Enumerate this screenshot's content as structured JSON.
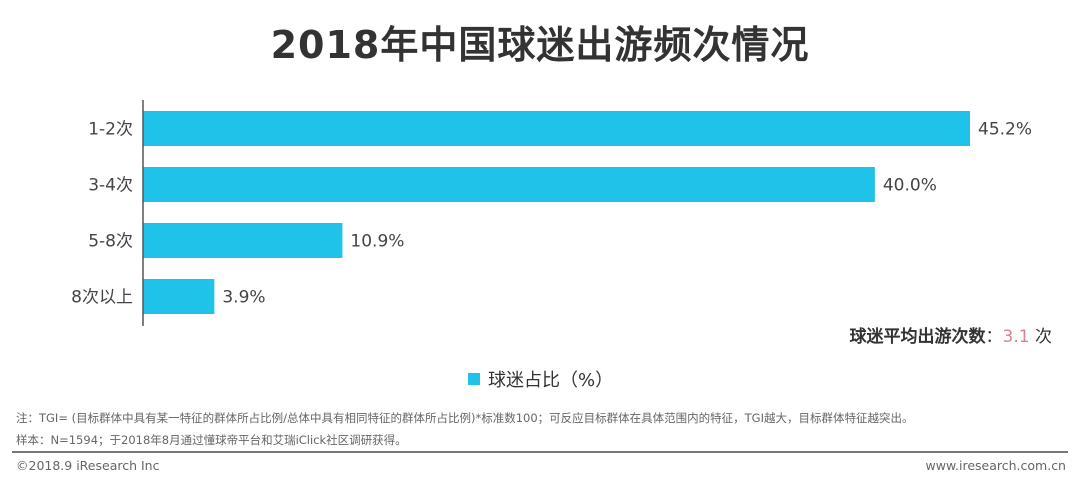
{
  "chart_data": {
    "type": "bar",
    "orientation": "horizontal",
    "title": "2018年中国球迷出游频次情况",
    "categories": [
      "1-2次",
      "3-4次",
      "5-8次",
      "8次以上"
    ],
    "series": [
      {
        "name": "球迷占比（%）",
        "values": [
          45.2,
          40.0,
          10.9,
          3.9
        ]
      }
    ],
    "data_labels": [
      "45.2%",
      "40.0%",
      "10.9%",
      "3.9%"
    ],
    "xlim": [
      0,
      45.2
    ],
    "grid": false,
    "legend_placement": "bottom",
    "color": "#1fc2e8"
  },
  "annotation": {
    "label": "球迷平均出游次数",
    "sep": "：",
    "value": "3.1",
    "unit": "次"
  },
  "notes": [
    "注：TGI= (目标群体中具有某一特征的群体所占比例/总体中具有相同特征的群体所占比例)*标准数100；可反应目标群体在具体范围内的特征，TGI越大，目标群体特征越突出。",
    "样本：N=1594；于2018年8月通过懂球帝平台和艾瑞iClick社区调研获得。"
  ],
  "footer": {
    "copyright": "©2018.9 iResearch Inc",
    "website": "www.iresearch.com.cn"
  }
}
